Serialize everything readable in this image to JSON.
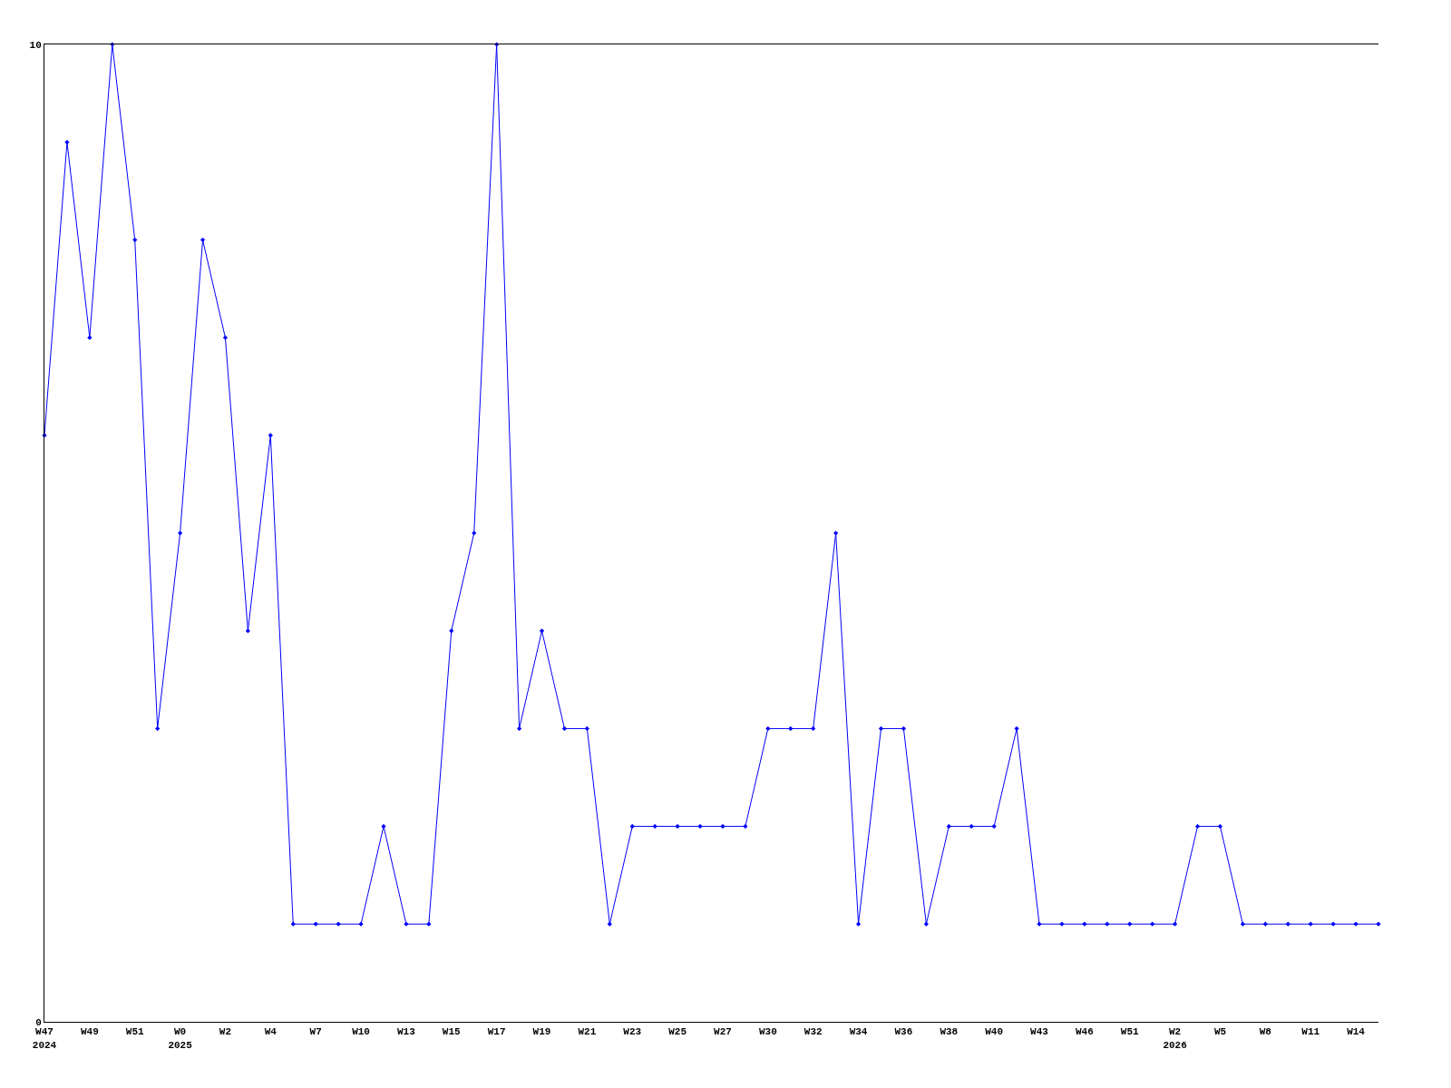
{
  "chart_data": {
    "type": "line",
    "categories": [
      "W47\n2024",
      null,
      "W49",
      null,
      "W51",
      null,
      "W0\n2025",
      null,
      "W2",
      null,
      "W4",
      null,
      "W7",
      null,
      "W10",
      null,
      "W13",
      null,
      "W15",
      null,
      "W17",
      null,
      "W19",
      null,
      "W21",
      null,
      "W23",
      null,
      "W25",
      null,
      "W27",
      null,
      "W30",
      null,
      "W32",
      null,
      "W34",
      null,
      "W36",
      null,
      "W38",
      null,
      "W40",
      null,
      "W43",
      null,
      "W46",
      null,
      "W51",
      null,
      "W2\n2026",
      null,
      "W5",
      null,
      "W8",
      null,
      "W11",
      null,
      "W14",
      null
    ],
    "series": [
      {
        "color": "#0000ff",
        "values": [
          6,
          9,
          7,
          10,
          8,
          3,
          5,
          8,
          7,
          4,
          6,
          1,
          1,
          1,
          1,
          2,
          1,
          1,
          4,
          5,
          10,
          3,
          4,
          3,
          3,
          1,
          2,
          2,
          2,
          2,
          2,
          2,
          3,
          3,
          3,
          5,
          1,
          3,
          3,
          1,
          2,
          2,
          2,
          3,
          1,
          1,
          1,
          1,
          1,
          1,
          1,
          2,
          2,
          1,
          1,
          1,
          1,
          1,
          1,
          1
        ]
      }
    ],
    "ylim": [
      0,
      10
    ],
    "yticks": [
      0,
      10
    ],
    "marker": "diamond",
    "line_style": "solid"
  }
}
